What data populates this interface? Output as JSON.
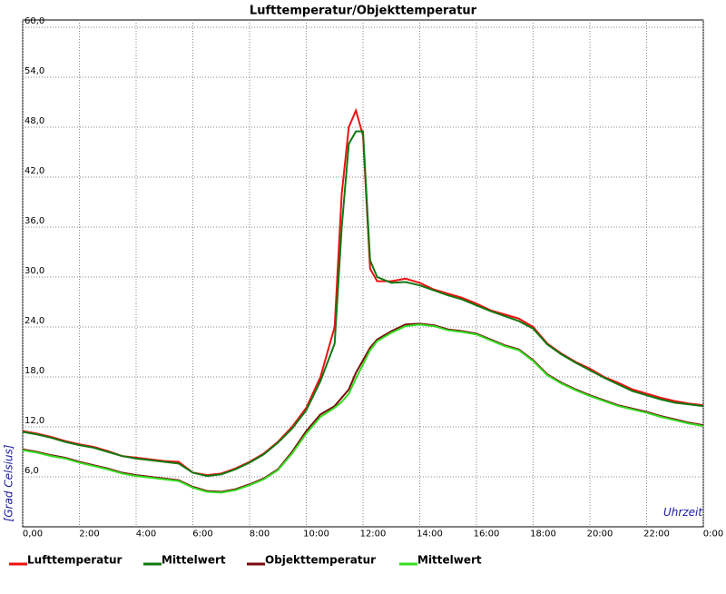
{
  "chart_data": {
    "type": "line",
    "title": "Lufttemperatur/Objekttemperatur",
    "x_label": "Uhrzeit",
    "y_label": "[Grad Celsius]",
    "x": [
      0,
      0.5,
      1,
      1.5,
      2,
      2.5,
      3,
      3.5,
      4,
      4.5,
      5,
      5.5,
      6,
      6.5,
      7,
      7.5,
      8,
      8.5,
      9,
      9.5,
      10,
      10.5,
      11,
      11.25,
      11.5,
      11.75,
      12,
      12.25,
      12.5,
      13,
      13.5,
      14,
      14.5,
      15,
      15.5,
      16,
      16.5,
      17,
      17.5,
      18,
      18.5,
      19,
      19.5,
      20,
      20.5,
      21,
      21.5,
      22,
      22.5,
      23,
      23.5,
      24
    ],
    "series": [
      {
        "name": "Lufttemperatur",
        "color": "#ee1111",
        "values": [
          11.5,
          11.2,
          10.8,
          10.3,
          9.9,
          9.6,
          9.1,
          8.5,
          8.3,
          8.1,
          7.9,
          7.8,
          6.5,
          6.2,
          6.4,
          7.0,
          7.8,
          8.8,
          10.2,
          12.0,
          14.3,
          18.0,
          24.0,
          40.0,
          48.0,
          50.0,
          47.0,
          31.0,
          29.5,
          29.5,
          29.8,
          29.3,
          28.5,
          28.0,
          27.5,
          26.8,
          26.0,
          25.5,
          25.0,
          24.0,
          22.0,
          20.8,
          19.8,
          19.0,
          18.0,
          17.3,
          16.5,
          16.0,
          15.5,
          15.1,
          14.8,
          14.6
        ]
      },
      {
        "name": "Mittelwert",
        "color": "#127812",
        "values": [
          11.4,
          11.1,
          10.7,
          10.2,
          9.8,
          9.5,
          9.0,
          8.5,
          8.2,
          8.0,
          7.8,
          7.6,
          6.5,
          6.1,
          6.3,
          6.9,
          7.7,
          8.7,
          10.1,
          11.8,
          14.0,
          17.5,
          22.0,
          36.0,
          46.0,
          47.5,
          47.5,
          32.0,
          30.0,
          29.3,
          29.4,
          29.0,
          28.4,
          27.8,
          27.3,
          26.6,
          25.9,
          25.3,
          24.7,
          23.8,
          21.9,
          20.7,
          19.7,
          18.8,
          17.9,
          17.1,
          16.3,
          15.8,
          15.3,
          14.9,
          14.7,
          14.5
        ]
      },
      {
        "name": "Objekttemperatur",
        "color": "#7a0a0a",
        "values": [
          9.3,
          9.0,
          8.6,
          8.3,
          7.8,
          7.4,
          7.0,
          6.5,
          6.2,
          6.0,
          5.8,
          5.6,
          4.8,
          4.3,
          4.2,
          4.5,
          5.1,
          5.8,
          6.9,
          9.0,
          11.5,
          13.5,
          14.5,
          15.5,
          16.5,
          18.5,
          20.0,
          21.5,
          22.5,
          23.5,
          24.3,
          24.4,
          24.2,
          23.7,
          23.5,
          23.2,
          22.5,
          21.8,
          21.3,
          20.0,
          18.3,
          17.3,
          16.5,
          15.8,
          15.2,
          14.6,
          14.2,
          13.8,
          13.3,
          12.9,
          12.5,
          12.2
        ]
      },
      {
        "name": "Mittelwert",
        "color": "#33dd22",
        "values": [
          9.2,
          8.9,
          8.5,
          8.2,
          7.7,
          7.3,
          6.9,
          6.4,
          6.1,
          5.9,
          5.7,
          5.5,
          4.7,
          4.2,
          4.1,
          4.4,
          5.0,
          5.7,
          6.8,
          8.8,
          11.2,
          13.2,
          14.3,
          15.0,
          16.0,
          17.8,
          19.5,
          21.2,
          22.3,
          23.3,
          24.1,
          24.3,
          24.1,
          23.6,
          23.4,
          23.1,
          22.4,
          21.7,
          21.2,
          19.9,
          18.2,
          17.2,
          16.4,
          15.7,
          15.1,
          14.5,
          14.1,
          13.7,
          13.2,
          12.8,
          12.4,
          12.1
        ]
      }
    ],
    "xlim": [
      0,
      24
    ],
    "xticks": [
      {
        "value": 0,
        "label": "0,00"
      },
      {
        "value": 2,
        "label": "2:00"
      },
      {
        "value": 4,
        "label": "4:00"
      },
      {
        "value": 6,
        "label": "6:00"
      },
      {
        "value": 8,
        "label": "8:00"
      },
      {
        "value": 10,
        "label": "10:00"
      },
      {
        "value": 12,
        "label": "12:00"
      },
      {
        "value": 14,
        "label": "14:00"
      },
      {
        "value": 16,
        "label": "16:00"
      },
      {
        "value": 18,
        "label": "18:00"
      },
      {
        "value": 20,
        "label": "20:00"
      },
      {
        "value": 22,
        "label": "22:00"
      },
      {
        "value": 24,
        "label": "0:00"
      }
    ],
    "ylim": [
      0,
      60
    ],
    "yticks": [
      {
        "value": 6,
        "label": "6,0"
      },
      {
        "value": 12,
        "label": "12,0"
      },
      {
        "value": 18,
        "label": "18,0"
      },
      {
        "value": 24,
        "label": "24,0"
      },
      {
        "value": 30,
        "label": "30,0"
      },
      {
        "value": 36,
        "label": "36,0"
      },
      {
        "value": 42,
        "label": "42,0"
      },
      {
        "value": 48,
        "label": "48,0"
      },
      {
        "value": 54,
        "label": "54,0"
      },
      {
        "value": 60,
        "label": "60,0"
      }
    ],
    "grid": true
  }
}
